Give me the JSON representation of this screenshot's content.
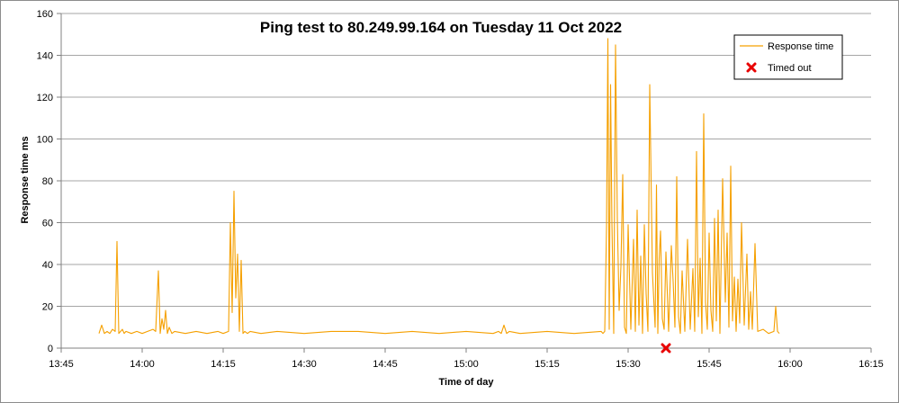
{
  "chart_data": {
    "type": "line",
    "title": "Ping test to 80.249.99.164 on Tuesday 11 Oct 2022",
    "xlabel": "Time of day",
    "ylabel": "Response time ms",
    "xlim": [
      "13:45",
      "16:15"
    ],
    "ylim": [
      0,
      160
    ],
    "x_ticks": [
      "13:45",
      "14:00",
      "14:15",
      "14:30",
      "14:45",
      "15:00",
      "15:15",
      "15:30",
      "15:45",
      "16:00",
      "16:15"
    ],
    "y_ticks": [
      0,
      20,
      40,
      60,
      80,
      100,
      120,
      140,
      160
    ],
    "grid": "horizontal",
    "legend_position": "top-right",
    "colors": {
      "response": "#f5a000",
      "timeout": "#e80000",
      "grid": "#a6a6a6"
    },
    "series": [
      {
        "name": "Response time",
        "kind": "line",
        "x": [
          "13:52",
          "13:52",
          "13:53",
          "13:53",
          "13:54",
          "13:54",
          "13:55",
          "13:55",
          "13:55",
          "13:56",
          "13:56",
          "13:56",
          "13:57",
          "13:58",
          "13:59",
          "14:00",
          "14:01",
          "14:02",
          "14:02",
          "14:03",
          "14:03",
          "14:03",
          "14:04",
          "14:04",
          "14:04",
          "14:05",
          "14:05",
          "14:06",
          "14:08",
          "14:10",
          "14:12",
          "14:14",
          "14:15",
          "14:16",
          "14:16",
          "14:16",
          "14:17",
          "14:17",
          "14:17",
          "14:18",
          "14:18",
          "14:18",
          "14:19",
          "14:19",
          "14:20",
          "14:22",
          "14:25",
          "14:30",
          "14:35",
          "14:40",
          "14:45",
          "14:50",
          "14:55",
          "15:00",
          "15:05",
          "15:06",
          "15:06",
          "15:07",
          "15:07",
          "15:08",
          "15:10",
          "15:15",
          "15:20",
          "15:25",
          "15:25",
          "15:25",
          "15:26",
          "15:26",
          "15:26",
          "15:26",
          "15:27",
          "15:27",
          "15:27",
          "15:28",
          "15:28",
          "15:28",
          "15:29",
          "15:29",
          "15:29",
          "15:30",
          "15:30",
          "15:31",
          "15:31",
          "15:31",
          "15:32",
          "15:32",
          "15:32",
          "15:33",
          "15:33",
          "15:33",
          "15:34",
          "15:34",
          "15:35",
          "15:35",
          "15:35",
          "15:35",
          "15:36",
          "15:36",
          "15:36",
          "15:37",
          "15:37",
          "15:38",
          "15:38",
          "15:38",
          "15:39",
          "15:39",
          "15:39",
          "15:40",
          "15:40",
          "15:41",
          "15:41",
          "15:42",
          "15:42",
          "15:42",
          "15:43",
          "15:43",
          "15:43",
          "15:44",
          "15:44",
          "15:44",
          "15:45",
          "15:45",
          "15:45",
          "15:46",
          "15:46",
          "15:46",
          "15:47",
          "15:47",
          "15:48",
          "15:48",
          "15:48",
          "15:49",
          "15:49",
          "15:49",
          "15:50",
          "15:50",
          "15:50",
          "15:51",
          "15:51",
          "15:52",
          "15:52",
          "15:52",
          "15:53",
          "15:53",
          "15:54",
          "15:55",
          "15:56",
          "15:57",
          "15:57",
          "15:57",
          "15:58"
        ],
        "y": [
          7,
          11,
          7,
          8,
          7,
          9,
          8,
          51,
          7,
          8,
          9,
          7,
          8,
          7,
          8,
          7,
          8,
          9,
          8,
          37,
          7,
          14,
          9,
          18,
          7,
          10,
          7,
          8,
          7,
          8,
          7,
          8,
          7,
          8,
          60,
          17,
          75,
          24,
          45,
          8,
          42,
          7,
          8,
          7,
          8,
          7,
          8,
          7,
          8,
          8,
          7,
          8,
          7,
          8,
          7,
          8,
          7,
          11,
          7,
          8,
          7,
          8,
          7,
          8,
          7,
          8,
          58,
          148,
          9,
          126,
          60,
          7,
          145,
          62,
          18,
          39,
          83,
          10,
          7,
          59,
          9,
          52,
          8,
          66,
          11,
          44,
          7,
          59,
          26,
          8,
          126,
          36,
          10,
          78,
          7,
          43,
          56,
          14,
          9,
          46,
          8,
          49,
          32,
          10,
          82,
          15,
          7,
          37,
          8,
          52,
          9,
          38,
          8,
          94,
          15,
          43,
          7,
          112,
          22,
          9,
          55,
          18,
          8,
          62,
          13,
          66,
          7,
          81,
          22,
          55,
          10,
          87,
          13,
          34,
          8,
          33,
          12,
          60,
          11,
          45,
          9,
          27,
          9,
          50,
          8,
          9,
          7,
          8,
          20,
          8,
          7
        ]
      },
      {
        "name": "Timed out",
        "kind": "marker",
        "x": [
          "15:37"
        ],
        "y": [
          0
        ]
      }
    ]
  }
}
